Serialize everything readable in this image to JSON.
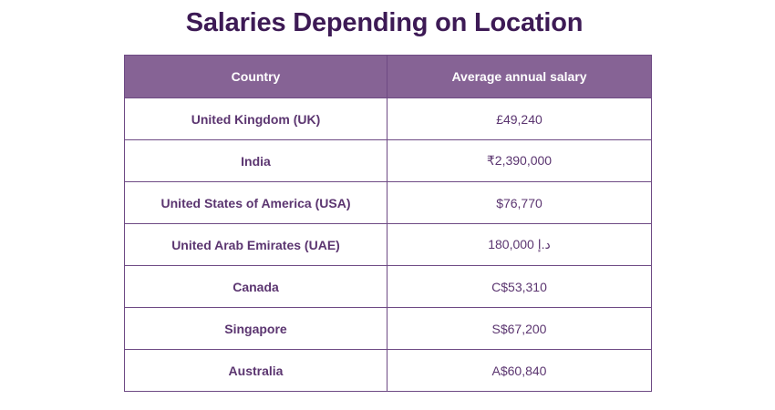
{
  "title": "Salaries Depending on Location",
  "table": {
    "headers": [
      "Country",
      "Average annual salary"
    ],
    "rows": [
      {
        "country": "United Kingdom (UK)",
        "salary": "£49,240"
      },
      {
        "country": "India",
        "salary": "₹2,390,000"
      },
      {
        "country": "United States of America (USA)",
        "salary": "$76,770"
      },
      {
        "country": "United Arab Emirates (UAE)",
        "salary": "180,000 د.إ"
      },
      {
        "country": "Canada",
        "salary": "C$53,310"
      },
      {
        "country": "Singapore",
        "salary": "S$67,200"
      },
      {
        "country": "Australia",
        "salary": "A$60,840"
      }
    ]
  },
  "colors": {
    "title": "#3d1a55",
    "header_bg": "#866395",
    "header_text": "#ffffff",
    "cell_text": "#5b3570",
    "border": "#6e4a84"
  }
}
